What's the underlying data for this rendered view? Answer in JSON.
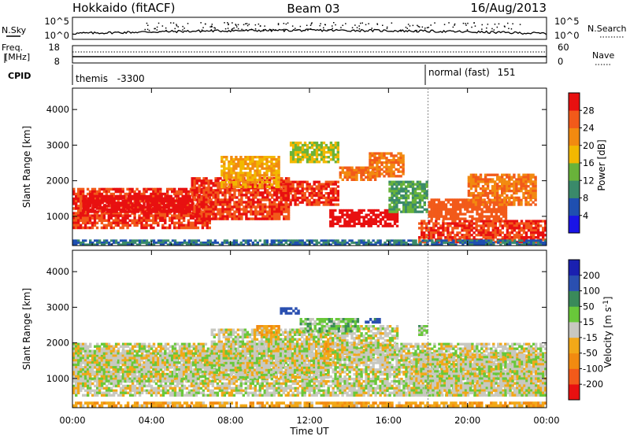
{
  "header": {
    "station": "Hokkaido (fitACF)",
    "beam": "Beam 03",
    "date": "16/Aug/2013"
  },
  "summary_panels": {
    "nsky_label": "N.Sky",
    "nsky_ticks": [
      "10^5",
      "10^0"
    ],
    "nsearch_label": "N.Search",
    "nsearch_ticks": [
      "10^5",
      "10^0"
    ],
    "freq_label_1": "Freq.",
    "freq_label_2": "[MHz]",
    "freq_ticks": [
      "18",
      "8"
    ],
    "nave_label": "Nave",
    "nave_ticks": [
      "60",
      "0"
    ],
    "cpid_label": "CPID",
    "cpid_segments": [
      {
        "name": "themis",
        "id": "-3300",
        "start_hour": 0
      },
      {
        "name": "normal (fast)",
        "id": "151",
        "start_hour": 18
      }
    ]
  },
  "axes": {
    "x_ticks": [
      "00:00",
      "04:00",
      "08:00",
      "12:00",
      "16:00",
      "20:00",
      "00:00"
    ],
    "x_tick_hours": [
      0,
      4,
      8,
      12,
      16,
      20,
      24
    ],
    "xlabel": "Time UT",
    "ylabel": "Slant Range [km]",
    "y_ticks": [
      "4000",
      "3000",
      "2000",
      "1000"
    ],
    "y_tick_values": [
      4000,
      3000,
      2000,
      1000
    ],
    "ylim": [
      180,
      4600
    ],
    "xlim": [
      0,
      24
    ]
  },
  "colorbars": {
    "power_label": "Power [dB]",
    "power_ticks": [
      "28",
      "24",
      "20",
      "16",
      "12",
      "8",
      "4"
    ],
    "velocity_label_main": "Velocity [m s",
    "velocity_label_sup": "-1",
    "velocity_label_end": "]",
    "velocity_ticks": [
      "200",
      "100",
      "50",
      "15",
      "-15",
      "-50",
      "-100",
      "-200"
    ]
  },
  "chart_data": [
    {
      "type": "heatmap",
      "panel": "power",
      "title": "",
      "xlabel": "Time UT",
      "ylabel": "Slant Range [km]",
      "xlim": [
        0,
        24
      ],
      "ylim": [
        180,
        4600
      ],
      "colorbar": {
        "label": "Power [dB]",
        "levels": [
          0,
          4,
          8,
          12,
          16,
          20,
          24,
          28,
          32
        ],
        "colors": [
          "#1a14e6",
          "#1f4fb0",
          "#3a8a6a",
          "#69b33a",
          "#f2b800",
          "#f28a10",
          "#f25a1a",
          "#e81010"
        ]
      },
      "regions": [
        {
          "t": [
            0.0,
            7.0
          ],
          "r": [
            650,
            1800
          ],
          "level": 28
        },
        {
          "t": [
            0.5,
            6.0
          ],
          "r": [
            1100,
            1600
          ],
          "level": 30
        },
        {
          "t": [
            6.0,
            11.0
          ],
          "r": [
            900,
            2100
          ],
          "level": 28
        },
        {
          "t": [
            7.5,
            10.5
          ],
          "r": [
            1800,
            2700
          ],
          "level": 20
        },
        {
          "t": [
            10.5,
            13.5
          ],
          "r": [
            1300,
            2000
          ],
          "level": 28
        },
        {
          "t": [
            11.0,
            13.5
          ],
          "r": [
            2500,
            3100
          ],
          "level": 16
        },
        {
          "t": [
            13.0,
            16.5
          ],
          "r": [
            700,
            1200
          ],
          "level": 30
        },
        {
          "t": [
            13.5,
            15.5
          ],
          "r": [
            2000,
            2400
          ],
          "level": 24
        },
        {
          "t": [
            15.0,
            16.8
          ],
          "r": [
            2100,
            2800
          ],
          "level": 24
        },
        {
          "t": [
            16.0,
            18.0
          ],
          "r": [
            1100,
            2000
          ],
          "level": 12
        },
        {
          "t": [
            17.5,
            24.0
          ],
          "r": [
            250,
            900
          ],
          "level": 28
        },
        {
          "t": [
            18.0,
            22.0
          ],
          "r": [
            900,
            1500
          ],
          "level": 26
        },
        {
          "t": [
            20.0,
            23.5
          ],
          "r": [
            1300,
            2200
          ],
          "level": 24
        },
        {
          "t": [
            0.0,
            24.0
          ],
          "r": [
            180,
            350
          ],
          "level": 8
        }
      ]
    },
    {
      "type": "heatmap",
      "panel": "velocity",
      "title": "",
      "xlabel": "Time UT",
      "ylabel": "Slant Range [km]",
      "xlim": [
        0,
        24
      ],
      "ylim": [
        180,
        4600
      ],
      "colorbar": {
        "label": "Velocity [m s-1]",
        "levels": [
          -250,
          -200,
          -100,
          -50,
          -15,
          15,
          50,
          100,
          200,
          250
        ],
        "colors": [
          "#e81010",
          "#f25a1a",
          "#f28a10",
          "#f2a818",
          "#c8c8c0",
          "#69c83a",
          "#3a8a5a",
          "#2a4fb0",
          "#1a20b0"
        ]
      },
      "regions": [
        {
          "t": [
            0.0,
            24.0
          ],
          "r": [
            500,
            2000
          ],
          "level": 0
        },
        {
          "t": [
            0.0,
            7.0
          ],
          "r": [
            900,
            1800
          ],
          "level": 0
        },
        {
          "t": [
            7.0,
            13.0
          ],
          "r": [
            1000,
            2400
          ],
          "level": 0
        },
        {
          "t": [
            13.0,
            16.5
          ],
          "r": [
            1500,
            2500
          ],
          "level": 0
        },
        {
          "t": [
            17.0,
            24.0
          ],
          "r": [
            500,
            1700
          ],
          "level": 0
        },
        {
          "t": [
            9.3,
            10.5
          ],
          "r": [
            2200,
            2500
          ],
          "level": -40
        },
        {
          "t": [
            12.7,
            13.1
          ],
          "r": [
            1400,
            2000
          ],
          "level": -40
        },
        {
          "t": [
            10.5,
            11.5
          ],
          "r": [
            2800,
            3000
          ],
          "level": 150
        },
        {
          "t": [
            11.5,
            14.5
          ],
          "r": [
            2300,
            2700
          ],
          "level": 30
        },
        {
          "t": [
            14.8,
            15.6
          ],
          "r": [
            2550,
            2700
          ],
          "level": 120
        },
        {
          "t": [
            17.5,
            18.0
          ],
          "r": [
            2200,
            2500
          ],
          "level": 30
        },
        {
          "t": [
            0.0,
            24.0
          ],
          "r": [
            200,
            350
          ],
          "level": -40
        }
      ]
    }
  ]
}
